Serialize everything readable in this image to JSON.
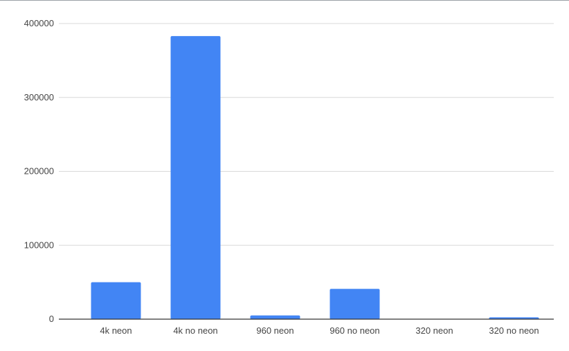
{
  "chart_data": {
    "type": "bar",
    "title": "",
    "xlabel": "",
    "ylabel": "",
    "categories": [
      "4k neon",
      "4k no neon",
      "960 neon",
      "960 no neon",
      "320 neon",
      "320 no neon"
    ],
    "values": [
      50000,
      383000,
      5000,
      41000,
      500,
      2500
    ],
    "ylim": [
      0,
      400000
    ],
    "yticks": [
      0,
      100000,
      200000,
      300000,
      400000
    ],
    "ytick_labels": [
      "0",
      "100000",
      "200000",
      "300000",
      "400000"
    ],
    "grid": true,
    "legend": "none",
    "colors": {
      "bar": "#4285f4",
      "grid": "#d9d9d9",
      "axis": "#333333",
      "text": "#444444"
    }
  }
}
